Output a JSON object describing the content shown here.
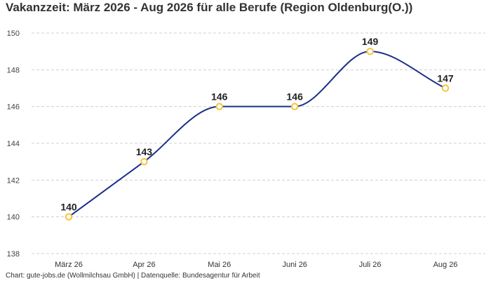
{
  "chart_data": {
    "type": "line",
    "title": "Vakanzzeit: März 2026 - Aug 2026 für alle Berufe (Region Oldenburg(O.))",
    "categories": [
      "März 26",
      "Apr 26",
      "Mai 26",
      "Juni 26",
      "Juli 26",
      "Aug 26"
    ],
    "series": [
      {
        "values": [
          140,
          143,
          146,
          146,
          149,
          147
        ]
      }
    ],
    "ylim": [
      138,
      150
    ],
    "yticks": [
      138,
      140,
      142,
      144,
      146,
      148,
      150
    ],
    "xlabel": "",
    "ylabel": "",
    "grid": true,
    "colors": {
      "line": "#1a2f8a",
      "marker": "#f2c53d"
    }
  },
  "source": "Chart: gute-jobs.de (Wollmilchsau GmbH) | Datenquelle: Bundesagentur für Arbeit"
}
